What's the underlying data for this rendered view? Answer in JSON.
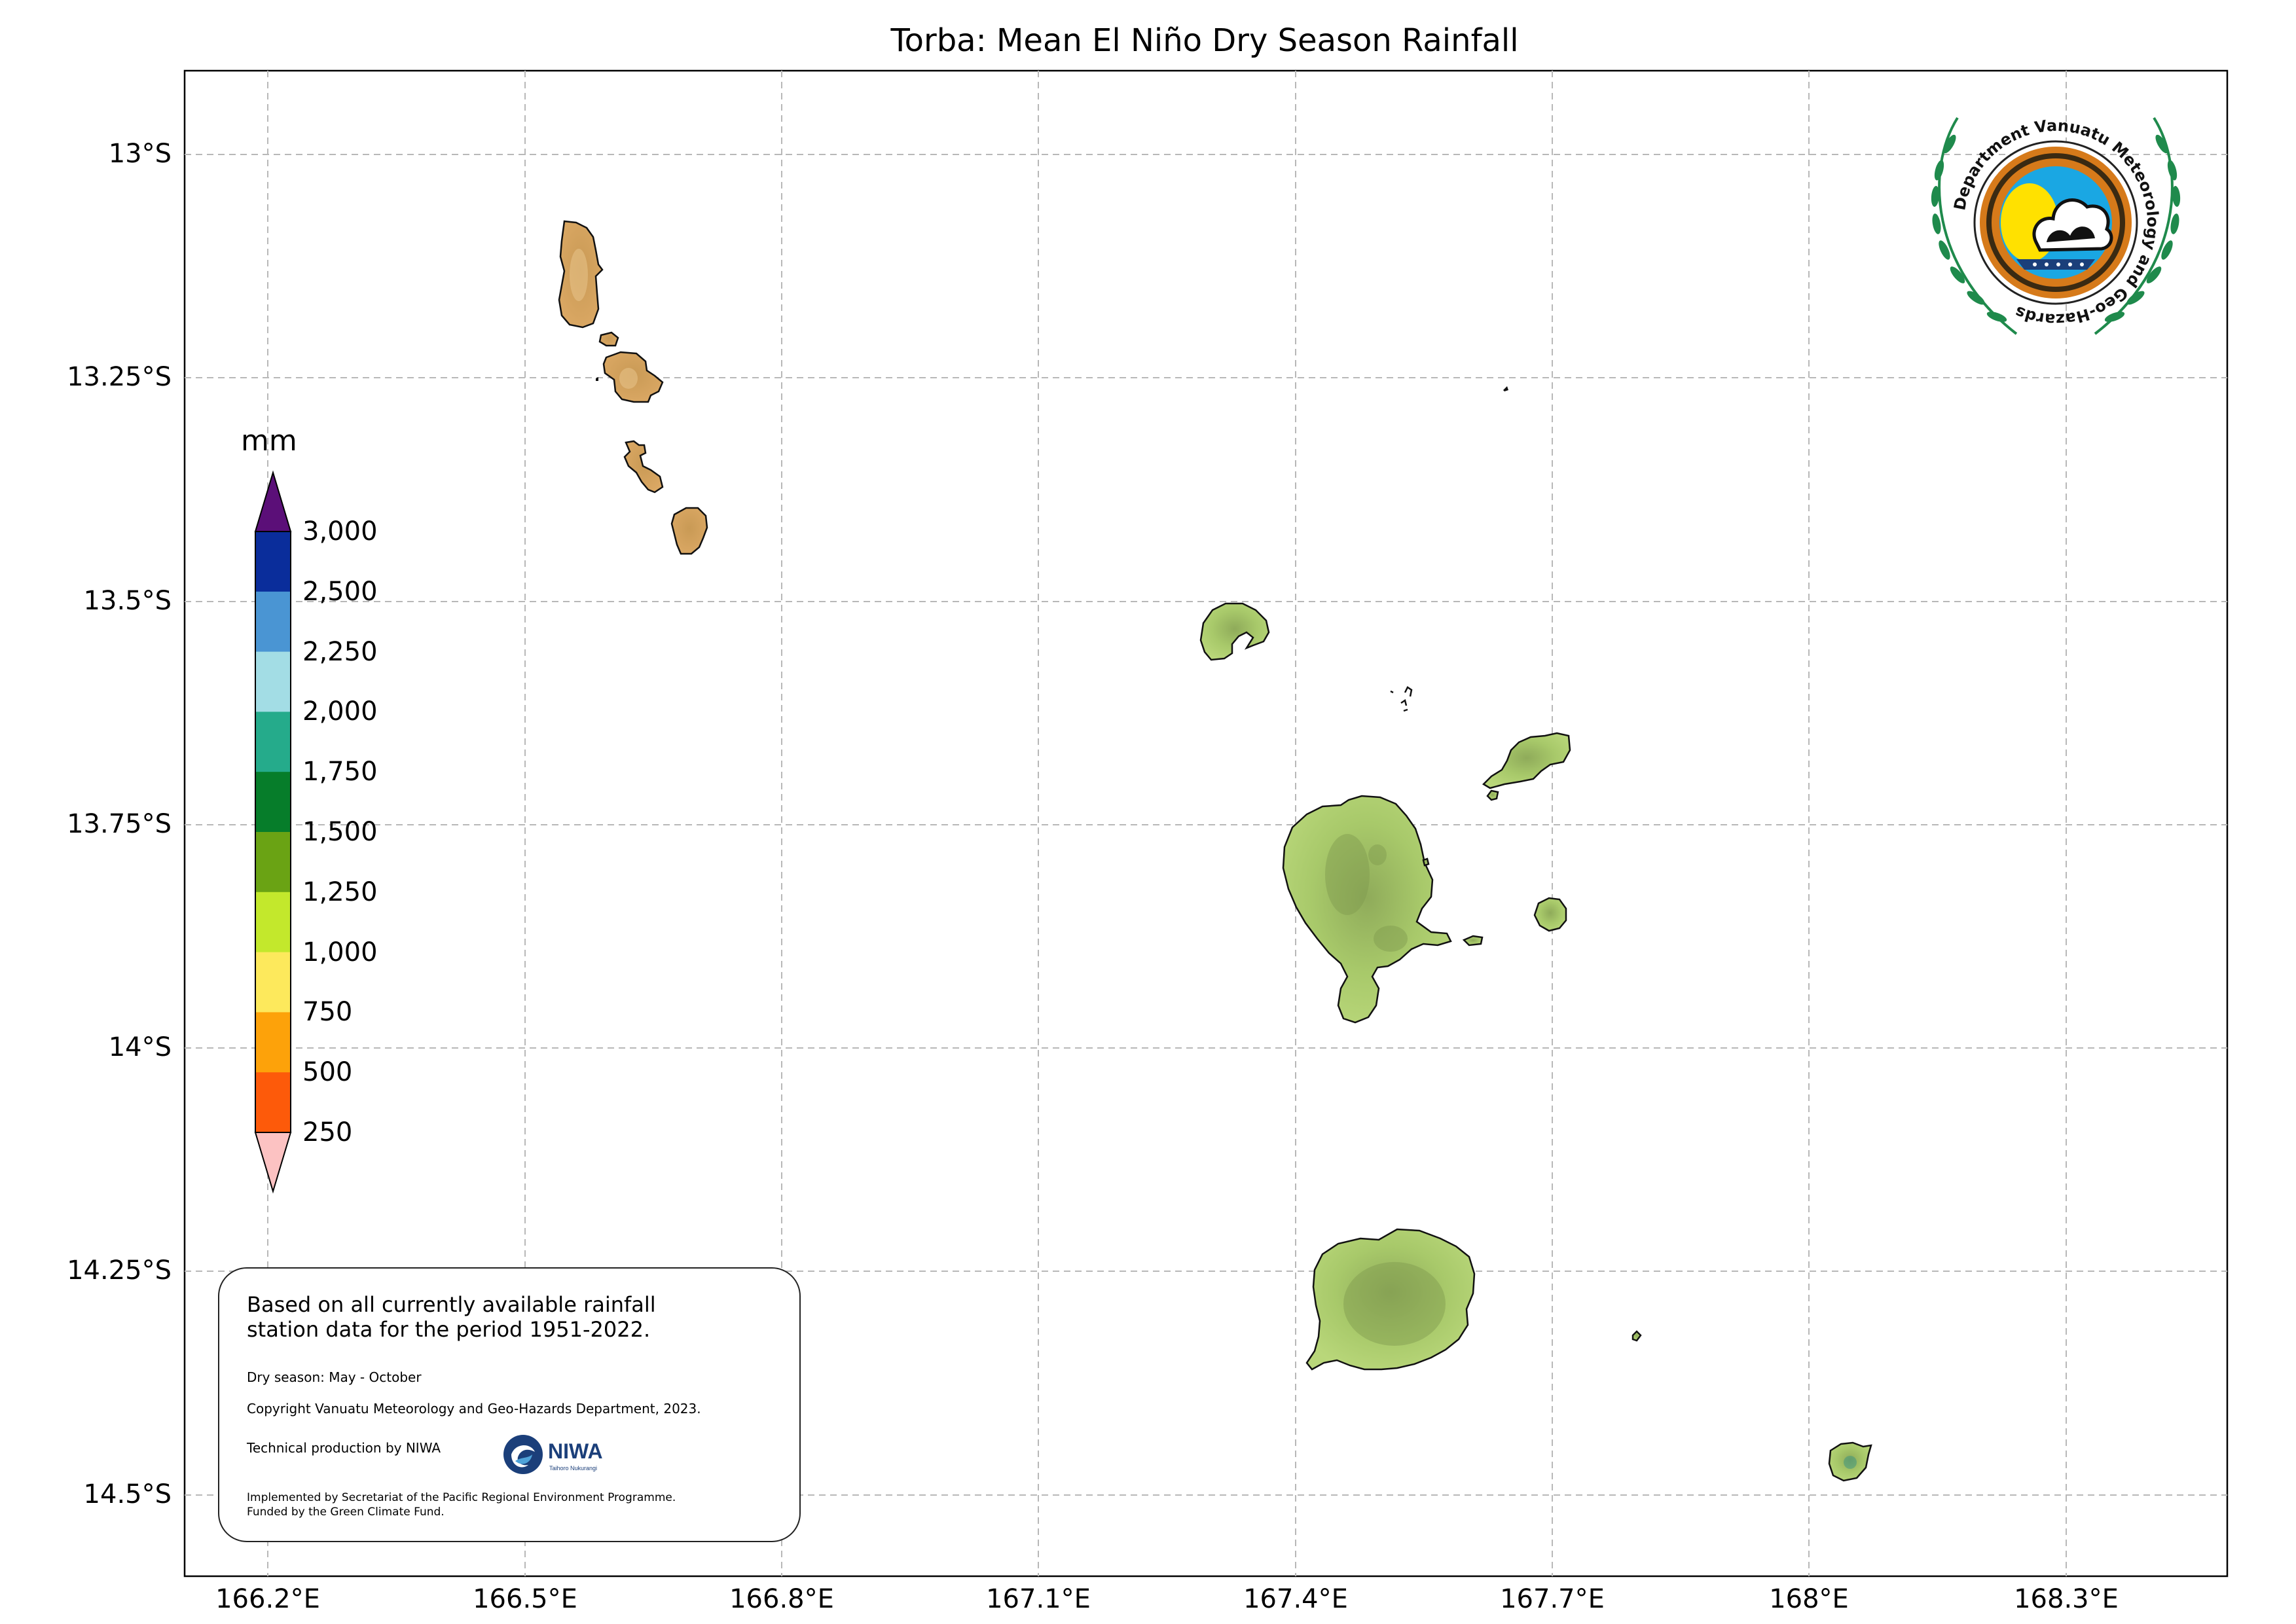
{
  "title": "Torba: Mean El Niño Dry Season Rainfall",
  "colorbar": {
    "unit": "mm",
    "tick_labels": [
      "3,000",
      "2,500",
      "2,250",
      "2,000",
      "1,750",
      "1,500",
      "1,250",
      "1,000",
      "750",
      "500",
      "250"
    ],
    "colors_top_to_bottom": [
      "#5b0f78",
      "#0a2d9b",
      "#4a95d3",
      "#a3dde5",
      "#25ab8b",
      "#067d2a",
      "#6aa314",
      "#c3e82c",
      "#fde95c",
      "#fda20a",
      "#fd5a0a",
      "#fcc2c2"
    ]
  },
  "axes": {
    "y_ticks": [
      "13°S",
      "13.25°S",
      "13.5°S",
      "13.75°S",
      "14°S",
      "14.25°S",
      "14.5°S"
    ],
    "x_ticks": [
      "166.2°E",
      "166.5°E",
      "166.8°E",
      "167.1°E",
      "167.4°E",
      "167.7°E",
      "168°E",
      "168.3°E"
    ],
    "grid": true,
    "grid_style": "dashed"
  },
  "info": {
    "line1": "Based on all currently available rainfall",
    "line2": "station data for the period 1951-2022.",
    "season": "Dry season: May - October",
    "copyright": "Copyright Vanuatu Meteorology and Geo-Hazards Department, 2023.",
    "technical": "Technical production by NIWA",
    "niwa_logo_text": "NIWA",
    "niwa_logo_subtext": "Taihoro Nukurangi",
    "implemented": "Implemented by Secretariat of the Pacific Regional Environment Programme.",
    "funded": "Funded by the Green Climate Fund."
  },
  "logo": {
    "text": "Department Vanuatu Meteorology and Geo-Hazards"
  },
  "island_colors": {
    "north_group": "#d2a059",
    "south_group": "#a8c96a",
    "tegua_area": "#b5cf72"
  }
}
